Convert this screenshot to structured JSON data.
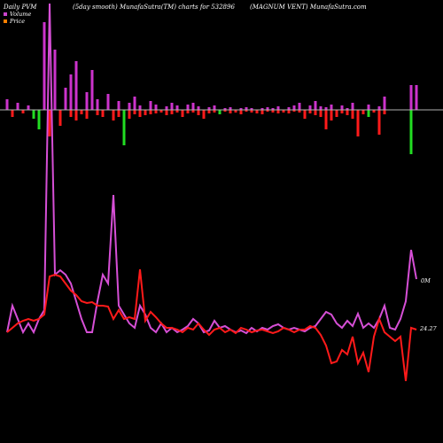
{
  "header": {
    "left": "Daily PVM",
    "center": "(5day smooth) MunafaSutra(TM) charts for 532896",
    "right": "(MAGNUM VENT) MunafaSutra.com"
  },
  "legend": {
    "volume_label": "Volume",
    "price_label": "Price",
    "volume_color": "#cc44cc",
    "price_color": "#ff7f00"
  },
  "value_labels": {
    "volume": "0M",
    "price": "24.27"
  },
  "colors": {
    "background": "#000000",
    "volume_line": "#d64fd6",
    "price_line": "#ff1a1a",
    "bar_up": "#cc33cc",
    "bar_down": "#ff1a1a",
    "bar_volume_down": "#22dd22",
    "baseline": "#b0b0b0"
  },
  "chart_data": {
    "type": "line",
    "x_count": 78,
    "bars": {
      "up": [
        12,
        0,
        8,
        0,
        5,
        0,
        0,
        99,
        0,
        68,
        0,
        25,
        40,
        55,
        0,
        20,
        45,
        12,
        0,
        18,
        0,
        10,
        0,
        8,
        15,
        5,
        0,
        10,
        6,
        0,
        4,
        8,
        5,
        0,
        6,
        8,
        4,
        0,
        3,
        5,
        0,
        2,
        3,
        0,
        2,
        3,
        2,
        0,
        2,
        3,
        2,
        4,
        0,
        3,
        5,
        8,
        0,
        5,
        10,
        4,
        3,
        6,
        0,
        5,
        2,
        8,
        0,
        0,
        6,
        0,
        4,
        15,
        0,
        0,
        0,
        0,
        28,
        28
      ],
      "down": [
        0,
        8,
        0,
        4,
        0,
        10,
        22,
        0,
        30,
        0,
        18,
        0,
        8,
        12,
        5,
        10,
        0,
        6,
        8,
        0,
        12,
        8,
        40,
        10,
        5,
        8,
        6,
        5,
        4,
        3,
        6,
        5,
        3,
        8,
        4,
        3,
        6,
        10,
        4,
        3,
        5,
        2,
        4,
        3,
        5,
        2,
        3,
        4,
        5,
        2,
        3,
        4,
        3,
        4,
        2,
        3,
        10,
        4,
        6,
        8,
        22,
        12,
        8,
        4,
        6,
        10,
        30,
        5,
        8,
        3,
        28,
        5,
        0,
        0,
        0,
        0,
        50,
        0
      ],
      "down_green": [
        1,
        0,
        0,
        0,
        0,
        1,
        1,
        0,
        0,
        0,
        0,
        0,
        0,
        0,
        0,
        0,
        0,
        0,
        0,
        0,
        0,
        0,
        1,
        0,
        0,
        0,
        0,
        0,
        0,
        0,
        0,
        0,
        0,
        0,
        0,
        0,
        0,
        0,
        0,
        0,
        1,
        0,
        0,
        0,
        0,
        0,
        0,
        0,
        0,
        0,
        0,
        0,
        0,
        0,
        0,
        0,
        0,
        0,
        0,
        0,
        0,
        0,
        0,
        0,
        0,
        0,
        0,
        0,
        1,
        0,
        0,
        0,
        0,
        0,
        0,
        0,
        1,
        0
      ]
    },
    "series": [
      {
        "name": "Volume",
        "values": [
          375,
          345,
          360,
          375,
          365,
          375,
          360,
          350,
          -500,
          310,
          305,
          310,
          320,
          340,
          360,
          375,
          375,
          340,
          310,
          320,
          220,
          345,
          355,
          365,
          370,
          345,
          355,
          370,
          375,
          365,
          375,
          370,
          375,
          372,
          368,
          360,
          365,
          375,
          373,
          362,
          370,
          368,
          372,
          375,
          373,
          376,
          370,
          374,
          370,
          372,
          368,
          366,
          370,
          372,
          370,
          372,
          374,
          370,
          368,
          360,
          352,
          355,
          365,
          370,
          362,
          368,
          354,
          370,
          365,
          370,
          360,
          345,
          370,
          372,
          360,
          340,
          282,
          315
        ]
      },
      {
        "name": "Price",
        "values": [
          375,
          370,
          365,
          362,
          360,
          362,
          360,
          355,
          312,
          310,
          312,
          320,
          328,
          333,
          340,
          342,
          341,
          345,
          345,
          346,
          360,
          350,
          360,
          358,
          360,
          304,
          362,
          352,
          358,
          365,
          370,
          370,
          372,
          375,
          370,
          372,
          365,
          372,
          378,
          372,
          370,
          375,
          372,
          376,
          370,
          372,
          375,
          373,
          372,
          374,
          376,
          374,
          370,
          372,
          375,
          372,
          372,
          368,
          370,
          378,
          390,
          410,
          408,
          395,
          400,
          380,
          410,
          398,
          420,
          380,
          360,
          375,
          380,
          385,
          380,
          430,
          370,
          372
        ]
      }
    ],
    "ylim": [
      500,
      0
    ],
    "grid": false,
    "legend_position": "top-left"
  }
}
